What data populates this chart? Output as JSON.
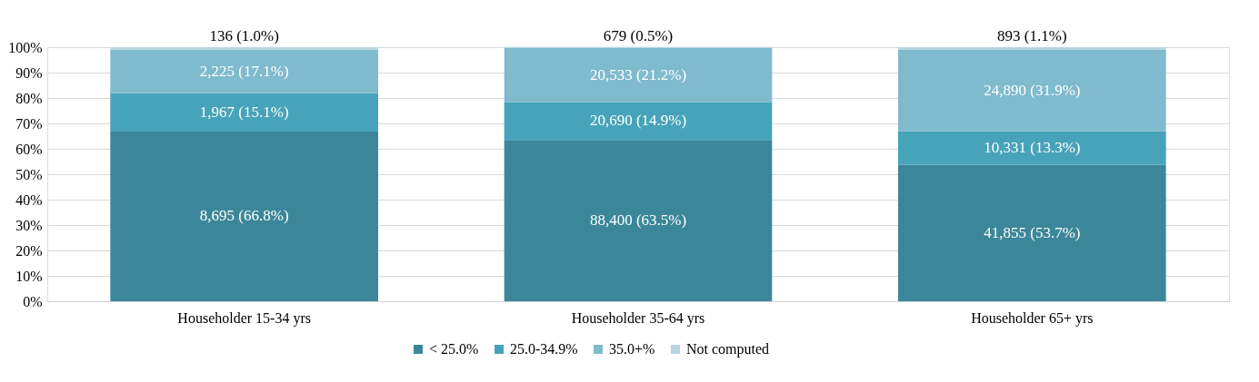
{
  "chart_data": {
    "type": "bar",
    "stacked": true,
    "categories": [
      "Householder 15-34 yrs",
      "Householder 35-64 yrs",
      "Householder 65+ yrs"
    ],
    "series": [
      {
        "name": "< 25.0%",
        "color": "#3b8799",
        "values": [
          66.8,
          63.5,
          53.7
        ],
        "value_labels": [
          "8,695 (66.8%)",
          "88,400 (63.5%)",
          "41,855 (53.7%)"
        ]
      },
      {
        "name": "25.0-34.9%",
        "color": "#47a3b9",
        "values": [
          15.1,
          14.9,
          13.3
        ],
        "value_labels": [
          "1,967 (15.1%)",
          "20,690 (14.9%)",
          "10,331 (13.3%)"
        ]
      },
      {
        "name": "35.0+%",
        "color": "#7fbacd",
        "values": [
          17.1,
          21.2,
          31.9
        ],
        "value_labels": [
          "2,225 (17.1%)",
          "20,533 (21.2%)",
          "24,890 (31.9%)"
        ]
      },
      {
        "name": "Not computed",
        "color": "#b8d6e0",
        "values": [
          1.0,
          0.5,
          1.1
        ],
        "value_labels": [
          "136 (1.0%)",
          "679 (0.5%)",
          "893 (1.1%)"
        ]
      }
    ],
    "ylim": [
      0,
      100
    ],
    "yticks": [
      {
        "value": 0,
        "label": "0%"
      },
      {
        "value": 10,
        "label": "10%"
      },
      {
        "value": 20,
        "label": "20%"
      },
      {
        "value": 30,
        "label": "30%"
      },
      {
        "value": 40,
        "label": "40%"
      },
      {
        "value": 50,
        "label": "50%"
      },
      {
        "value": 60,
        "label": "60%"
      },
      {
        "value": 70,
        "label": "70%"
      },
      {
        "value": 80,
        "label": "80%"
      },
      {
        "value": 90,
        "label": "90%"
      },
      {
        "value": 100,
        "label": "100%"
      }
    ],
    "grid": "y",
    "legend": "bottom"
  }
}
